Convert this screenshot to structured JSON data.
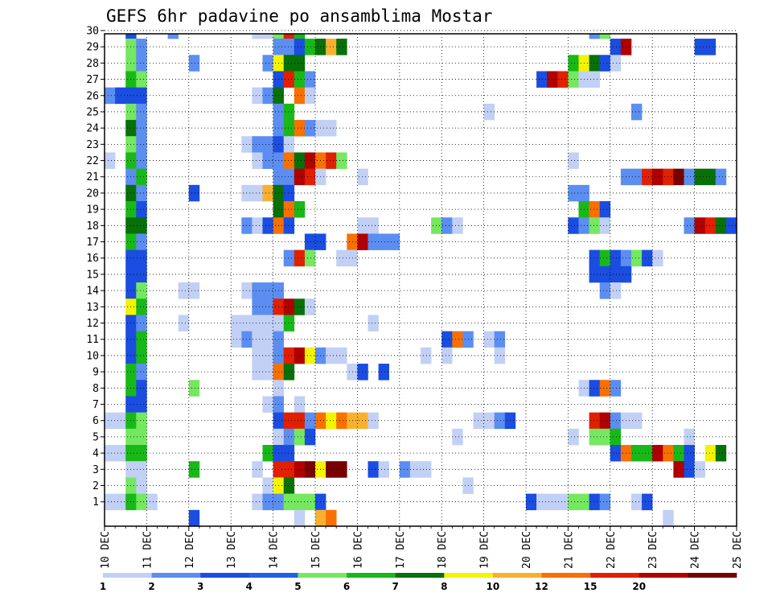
{
  "chart_data": {
    "type": "heatmap",
    "title": "GEFS 6hr padavine po ansamblima Mostar",
    "y_categories": [
      "1",
      "2",
      "3",
      "4",
      "5",
      "6",
      "7",
      "8",
      "9",
      "10",
      "11",
      "12",
      "13",
      "14",
      "15",
      "16",
      "17",
      "18",
      "19",
      "20",
      "21",
      "22",
      "23",
      "24",
      "25",
      "26",
      "27",
      "28",
      "29",
      "30"
    ],
    "x_tick_labels": [
      "10 DEC",
      "11 DEC",
      "12 DEC",
      "13 DEC",
      "14 DEC",
      "15 DEC",
      "16 DEC",
      "17 DEC",
      "18 DEC",
      "19 DEC",
      "20 DEC",
      "21 DEC",
      "22 DEC",
      "23 DEC",
      "24 DEC",
      "25 DEC"
    ],
    "x_range_days": [
      0,
      15
    ],
    "grid": true,
    "legend_position": "bottom",
    "legend": {
      "colors": [
        "#c2d0f5",
        "#5b8ef0",
        "#1a4de0",
        "#2060e8",
        "#74e860",
        "#18b818",
        "#087008",
        "#f4f400",
        "#f8b030",
        "#f87000",
        "#e02000",
        "#b00000",
        "#780000"
      ],
      "tick_labels": [
        "1",
        "2",
        "3",
        "4",
        "5",
        "6",
        "7",
        "8",
        "10",
        "12",
        "15",
        "20"
      ]
    },
    "note": "cells: [member, time_step_index (6h steps from 10 DEC 00Z), color_class_index into legend.colors]",
    "cells": [
      [
        30,
        2,
        2
      ],
      [
        30,
        6,
        1
      ],
      [
        30,
        14,
        0
      ],
      [
        30,
        15,
        0
      ],
      [
        30,
        16,
        4
      ],
      [
        30,
        17,
        10
      ],
      [
        30,
        18,
        5
      ],
      [
        30,
        46,
        1
      ],
      [
        30,
        47,
        4
      ],
      [
        29,
        2,
        4
      ],
      [
        29,
        3,
        1
      ],
      [
        29,
        16,
        1
      ],
      [
        29,
        17,
        1
      ],
      [
        29,
        18,
        2
      ],
      [
        29,
        19,
        5
      ],
      [
        29,
        20,
        6
      ],
      [
        29,
        21,
        8
      ],
      [
        29,
        22,
        6
      ],
      [
        29,
        48,
        2
      ],
      [
        29,
        49,
        11
      ],
      [
        29,
        56,
        2
      ],
      [
        29,
        57,
        2
      ],
      [
        28,
        2,
        4
      ],
      [
        28,
        3,
        1
      ],
      [
        28,
        8,
        1
      ],
      [
        28,
        15,
        1
      ],
      [
        28,
        16,
        7
      ],
      [
        28,
        17,
        6
      ],
      [
        28,
        18,
        6
      ],
      [
        28,
        44,
        5
      ],
      [
        28,
        45,
        7
      ],
      [
        28,
        46,
        6
      ],
      [
        28,
        47,
        2
      ],
      [
        28,
        48,
        0
      ],
      [
        27,
        2,
        5
      ],
      [
        27,
        3,
        4
      ],
      [
        27,
        16,
        2
      ],
      [
        27,
        17,
        10
      ],
      [
        27,
        18,
        5
      ],
      [
        27,
        19,
        1
      ],
      [
        27,
        41,
        2
      ],
      [
        27,
        42,
        11
      ],
      [
        27,
        43,
        10
      ],
      [
        27,
        44,
        4
      ],
      [
        27,
        45,
        0
      ],
      [
        27,
        46,
        0
      ],
      [
        26,
        0,
        1
      ],
      [
        26,
        1,
        2
      ],
      [
        26,
        2,
        2
      ],
      [
        26,
        3,
        2
      ],
      [
        26,
        14,
        0
      ],
      [
        26,
        15,
        1
      ],
      [
        26,
        16,
        6
      ],
      [
        26,
        18,
        9
      ],
      [
        26,
        19,
        0
      ],
      [
        25,
        2,
        4
      ],
      [
        25,
        3,
        1
      ],
      [
        25,
        16,
        1
      ],
      [
        25,
        17,
        5
      ],
      [
        25,
        36,
        0
      ],
      [
        25,
        50,
        1
      ],
      [
        24,
        2,
        6
      ],
      [
        24,
        3,
        1
      ],
      [
        24,
        16,
        1
      ],
      [
        24,
        17,
        5
      ],
      [
        24,
        18,
        9
      ],
      [
        24,
        19,
        1
      ],
      [
        24,
        20,
        0
      ],
      [
        24,
        21,
        0
      ],
      [
        23,
        2,
        4
      ],
      [
        23,
        3,
        1
      ],
      [
        23,
        13,
        0
      ],
      [
        23,
        14,
        1
      ],
      [
        23,
        15,
        1
      ],
      [
        23,
        16,
        2
      ],
      [
        23,
        17,
        0
      ],
      [
        22,
        0,
        0
      ],
      [
        22,
        2,
        5
      ],
      [
        22,
        3,
        1
      ],
      [
        22,
        14,
        0
      ],
      [
        22,
        15,
        1
      ],
      [
        22,
        16,
        1
      ],
      [
        22,
        17,
        9
      ],
      [
        22,
        18,
        6
      ],
      [
        22,
        19,
        11
      ],
      [
        22,
        20,
        9
      ],
      [
        22,
        21,
        10
      ],
      [
        22,
        22,
        4
      ],
      [
        22,
        44,
        0
      ],
      [
        21,
        2,
        1
      ],
      [
        21,
        3,
        5
      ],
      [
        21,
        16,
        1
      ],
      [
        21,
        17,
        1
      ],
      [
        21,
        18,
        11
      ],
      [
        21,
        19,
        10
      ],
      [
        21,
        20,
        0
      ],
      [
        21,
        24,
        0
      ],
      [
        21,
        49,
        1
      ],
      [
        21,
        50,
        1
      ],
      [
        21,
        51,
        10
      ],
      [
        21,
        52,
        11
      ],
      [
        21,
        53,
        10
      ],
      [
        21,
        54,
        12
      ],
      [
        21,
        55,
        1
      ],
      [
        21,
        56,
        6
      ],
      [
        21,
        57,
        6
      ],
      [
        21,
        58,
        1
      ],
      [
        20,
        2,
        6
      ],
      [
        20,
        3,
        1
      ],
      [
        20,
        8,
        2
      ],
      [
        20,
        13,
        0
      ],
      [
        20,
        14,
        0
      ],
      [
        20,
        15,
        8
      ],
      [
        20,
        16,
        6
      ],
      [
        20,
        17,
        2
      ],
      [
        20,
        44,
        1
      ],
      [
        20,
        45,
        1
      ],
      [
        19,
        2,
        5
      ],
      [
        19,
        3,
        2
      ],
      [
        19,
        16,
        6
      ],
      [
        19,
        17,
        9
      ],
      [
        19,
        18,
        5
      ],
      [
        19,
        45,
        5
      ],
      [
        19,
        46,
        9
      ],
      [
        19,
        47,
        2
      ],
      [
        18,
        2,
        6
      ],
      [
        18,
        3,
        6
      ],
      [
        18,
        13,
        1
      ],
      [
        18,
        14,
        0
      ],
      [
        18,
        15,
        2
      ],
      [
        18,
        16,
        9
      ],
      [
        18,
        17,
        2
      ],
      [
        18,
        24,
        0
      ],
      [
        18,
        25,
        0
      ],
      [
        18,
        31,
        4
      ],
      [
        18,
        32,
        1
      ],
      [
        18,
        33,
        0
      ],
      [
        18,
        44,
        2
      ],
      [
        18,
        45,
        1
      ],
      [
        18,
        46,
        4
      ],
      [
        18,
        47,
        0
      ],
      [
        18,
        55,
        1
      ],
      [
        18,
        56,
        11
      ],
      [
        18,
        57,
        10
      ],
      [
        18,
        58,
        6
      ],
      [
        18,
        59,
        2
      ],
      [
        17,
        2,
        5
      ],
      [
        17,
        3,
        1
      ],
      [
        17,
        19,
        2
      ],
      [
        17,
        20,
        2
      ],
      [
        17,
        23,
        9
      ],
      [
        17,
        24,
        11
      ],
      [
        17,
        25,
        1
      ],
      [
        17,
        26,
        1
      ],
      [
        17,
        27,
        1
      ],
      [
        16,
        2,
        2
      ],
      [
        16,
        3,
        2
      ],
      [
        16,
        17,
        1
      ],
      [
        16,
        18,
        10
      ],
      [
        16,
        19,
        4
      ],
      [
        16,
        22,
        0
      ],
      [
        16,
        23,
        0
      ],
      [
        16,
        46,
        2
      ],
      [
        16,
        47,
        5
      ],
      [
        16,
        48,
        2
      ],
      [
        16,
        49,
        1
      ],
      [
        16,
        50,
        4
      ],
      [
        16,
        51,
        2
      ],
      [
        16,
        52,
        0
      ],
      [
        15,
        2,
        2
      ],
      [
        15,
        3,
        2
      ],
      [
        15,
        46,
        2
      ],
      [
        15,
        47,
        2
      ],
      [
        15,
        48,
        2
      ],
      [
        15,
        49,
        2
      ],
      [
        14,
        2,
        2
      ],
      [
        14,
        3,
        4
      ],
      [
        14,
        7,
        0
      ],
      [
        14,
        8,
        0
      ],
      [
        14,
        13,
        0
      ],
      [
        14,
        14,
        1
      ],
      [
        14,
        15,
        1
      ],
      [
        14,
        16,
        1
      ],
      [
        14,
        47,
        1
      ],
      [
        14,
        48,
        0
      ],
      [
        13,
        2,
        7
      ],
      [
        13,
        3,
        5
      ],
      [
        13,
        14,
        1
      ],
      [
        13,
        15,
        1
      ],
      [
        13,
        16,
        10
      ],
      [
        13,
        17,
        11
      ],
      [
        13,
        18,
        6
      ],
      [
        13,
        19,
        0
      ],
      [
        12,
        2,
        2
      ],
      [
        12,
        3,
        1
      ],
      [
        12,
        7,
        0
      ],
      [
        12,
        12,
        0
      ],
      [
        12,
        13,
        0
      ],
      [
        12,
        14,
        0
      ],
      [
        12,
        15,
        0
      ],
      [
        12,
        16,
        0
      ],
      [
        12,
        17,
        5
      ],
      [
        12,
        25,
        0
      ],
      [
        11,
        2,
        2
      ],
      [
        11,
        3,
        5
      ],
      [
        11,
        12,
        0
      ],
      [
        11,
        13,
        1
      ],
      [
        11,
        14,
        0
      ],
      [
        11,
        15,
        0
      ],
      [
        11,
        16,
        1
      ],
      [
        11,
        32,
        2
      ],
      [
        11,
        33,
        9
      ],
      [
        11,
        34,
        1
      ],
      [
        11,
        36,
        0
      ],
      [
        11,
        37,
        1
      ],
      [
        10,
        2,
        2
      ],
      [
        10,
        3,
        5
      ],
      [
        10,
        14,
        0
      ],
      [
        10,
        15,
        0
      ],
      [
        10,
        16,
        1
      ],
      [
        10,
        17,
        10
      ],
      [
        10,
        18,
        11
      ],
      [
        10,
        19,
        7
      ],
      [
        10,
        20,
        1
      ],
      [
        10,
        21,
        0
      ],
      [
        10,
        22,
        0
      ],
      [
        10,
        30,
        0
      ],
      [
        10,
        32,
        0
      ],
      [
        10,
        37,
        0
      ],
      [
        9,
        2,
        5
      ],
      [
        9,
        3,
        1
      ],
      [
        9,
        14,
        0
      ],
      [
        9,
        15,
        0
      ],
      [
        9,
        16,
        9
      ],
      [
        9,
        17,
        6
      ],
      [
        9,
        23,
        0
      ],
      [
        9,
        24,
        2
      ],
      [
        9,
        26,
        2
      ],
      [
        8,
        2,
        5
      ],
      [
        8,
        3,
        2
      ],
      [
        8,
        8,
        4
      ],
      [
        8,
        16,
        0
      ],
      [
        8,
        45,
        0
      ],
      [
        8,
        46,
        2
      ],
      [
        8,
        47,
        9
      ],
      [
        8,
        48,
        1
      ],
      [
        7,
        2,
        2
      ],
      [
        7,
        3,
        2
      ],
      [
        7,
        15,
        0
      ],
      [
        7,
        16,
        1
      ],
      [
        7,
        18,
        0
      ],
      [
        6,
        0,
        0
      ],
      [
        6,
        1,
        0
      ],
      [
        6,
        2,
        5
      ],
      [
        6,
        3,
        4
      ],
      [
        6,
        16,
        2
      ],
      [
        6,
        17,
        10
      ],
      [
        6,
        18,
        10
      ],
      [
        6,
        19,
        1
      ],
      [
        6,
        20,
        9
      ],
      [
        6,
        21,
        7
      ],
      [
        6,
        22,
        9
      ],
      [
        6,
        23,
        8
      ],
      [
        6,
        24,
        8
      ],
      [
        6,
        25,
        0
      ],
      [
        6,
        35,
        0
      ],
      [
        6,
        36,
        0
      ],
      [
        6,
        37,
        1
      ],
      [
        6,
        38,
        2
      ],
      [
        6,
        46,
        10
      ],
      [
        6,
        47,
        11
      ],
      [
        6,
        48,
        1
      ],
      [
        6,
        49,
        0
      ],
      [
        6,
        50,
        0
      ],
      [
        5,
        2,
        4
      ],
      [
        5,
        3,
        4
      ],
      [
        5,
        16,
        0
      ],
      [
        5,
        17,
        1
      ],
      [
        5,
        18,
        4
      ],
      [
        5,
        19,
        2
      ],
      [
        5,
        33,
        0
      ],
      [
        5,
        44,
        0
      ],
      [
        5,
        46,
        4
      ],
      [
        5,
        47,
        4
      ],
      [
        5,
        48,
        5
      ],
      [
        5,
        55,
        0
      ],
      [
        4,
        0,
        0
      ],
      [
        4,
        1,
        0
      ],
      [
        4,
        2,
        5
      ],
      [
        4,
        3,
        5
      ],
      [
        4,
        15,
        5
      ],
      [
        4,
        16,
        2
      ],
      [
        4,
        17,
        2
      ],
      [
        4,
        48,
        2
      ],
      [
        4,
        49,
        9
      ],
      [
        4,
        50,
        5
      ],
      [
        4,
        51,
        5
      ],
      [
        4,
        52,
        11
      ],
      [
        4,
        53,
        9
      ],
      [
        4,
        54,
        5
      ],
      [
        4,
        55,
        2
      ],
      [
        4,
        57,
        7
      ],
      [
        4,
        58,
        6
      ],
      [
        3,
        2,
        0
      ],
      [
        3,
        3,
        0
      ],
      [
        3,
        8,
        5
      ],
      [
        3,
        14,
        0
      ],
      [
        3,
        16,
        10
      ],
      [
        3,
        17,
        10
      ],
      [
        3,
        18,
        11
      ],
      [
        3,
        19,
        12
      ],
      [
        3,
        20,
        7
      ],
      [
        3,
        21,
        12
      ],
      [
        3,
        22,
        12
      ],
      [
        3,
        25,
        2
      ],
      [
        3,
        26,
        0
      ],
      [
        3,
        28,
        1
      ],
      [
        3,
        29,
        0
      ],
      [
        3,
        30,
        0
      ],
      [
        3,
        54,
        11
      ],
      [
        3,
        55,
        2
      ],
      [
        3,
        56,
        0
      ],
      [
        2,
        2,
        4
      ],
      [
        2,
        3,
        0
      ],
      [
        2,
        15,
        0
      ],
      [
        2,
        16,
        7
      ],
      [
        2,
        17,
        6
      ],
      [
        2,
        34,
        0
      ],
      [
        1,
        0,
        0
      ],
      [
        1,
        1,
        0
      ],
      [
        1,
        2,
        5
      ],
      [
        1,
        3,
        4
      ],
      [
        1,
        4,
        0
      ],
      [
        1,
        14,
        0
      ],
      [
        1,
        15,
        1
      ],
      [
        1,
        16,
        1
      ],
      [
        1,
        17,
        4
      ],
      [
        1,
        18,
        4
      ],
      [
        1,
        19,
        4
      ],
      [
        1,
        20,
        2
      ],
      [
        1,
        40,
        2
      ],
      [
        1,
        41,
        0
      ],
      [
        1,
        42,
        0
      ],
      [
        1,
        43,
        0
      ],
      [
        1,
        44,
        4
      ],
      [
        1,
        45,
        4
      ],
      [
        1,
        46,
        2
      ],
      [
        1,
        47,
        1
      ],
      [
        1,
        50,
        0
      ],
      [
        1,
        51,
        2
      ],
      [
        0,
        8,
        2
      ],
      [
        0,
        18,
        0
      ],
      [
        0,
        20,
        8
      ],
      [
        0,
        21,
        9
      ],
      [
        0,
        53,
        0
      ]
    ]
  }
}
